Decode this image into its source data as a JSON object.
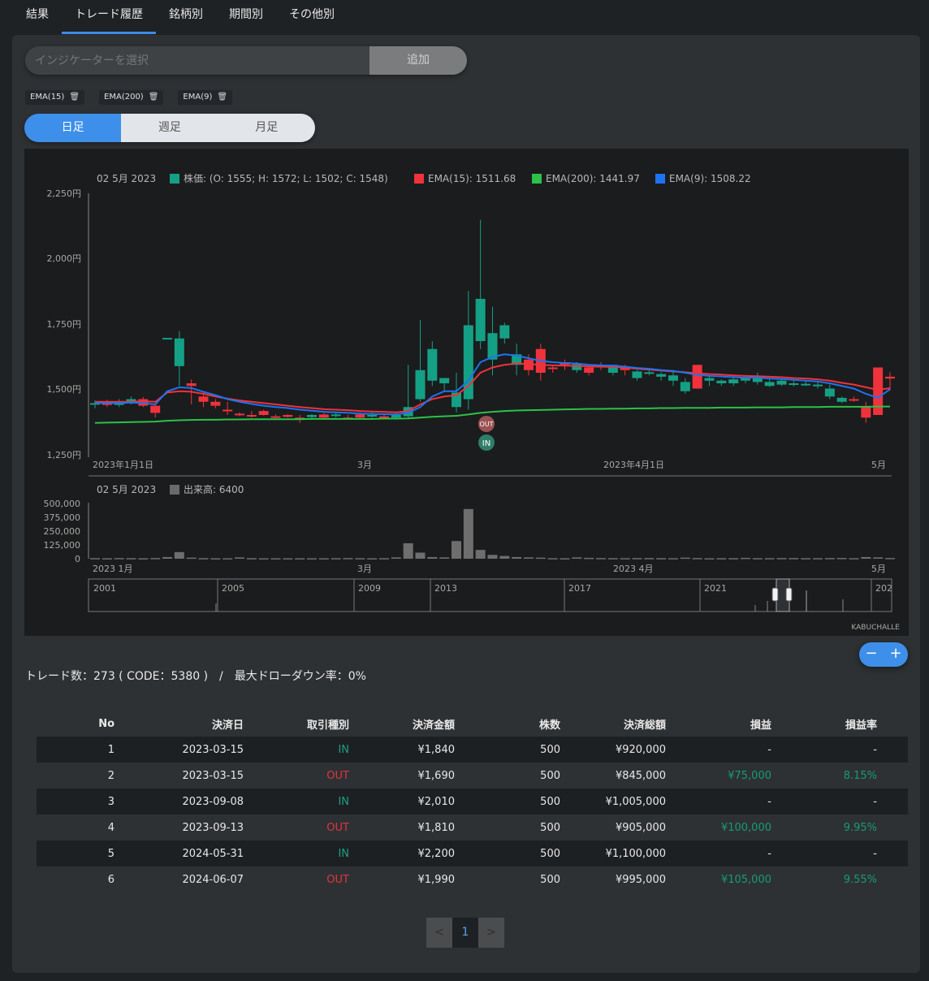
{
  "tabs": [
    {
      "label": "結果"
    },
    {
      "label": "トレード履歴"
    },
    {
      "label": "銘柄別"
    },
    {
      "label": "期間別"
    },
    {
      "label": "その他別"
    }
  ],
  "indicator": {
    "placeholder": "インジケーターを選択",
    "add_label": "追加"
  },
  "chips": [
    {
      "label": "EMA(15)"
    },
    {
      "label": "EMA(200)"
    },
    {
      "label": "EMA(9)"
    }
  ],
  "period_buttons": [
    {
      "label": "日足"
    },
    {
      "label": "週足"
    },
    {
      "label": "月足"
    }
  ],
  "colors": {
    "accent": "#3d8fea",
    "up": "#14a085",
    "down": "#f0323c",
    "ema15": "#f0323c",
    "ema200": "#2bc24a",
    "ema9": "#1c74f2"
  },
  "chart_data": {
    "type": "candlestick",
    "legend_date": "02 5月 2023",
    "legend_price": "株価: (O: 1555; H: 1572; L: 1502; C: 1548)",
    "legend_ema15": "EMA(15): 1511.68",
    "legend_ema200": "EMA(200): 1441.97",
    "legend_ema9": "EMA(9): 1508.22",
    "y_ticks": [
      "2,250円",
      "2,000円",
      "1,750円",
      "1,500円",
      "1,250円"
    ],
    "y_range": [
      1250,
      2250
    ],
    "x_ticks": [
      "2023年1月1日",
      "3月",
      "2023年4月1日",
      "5月"
    ],
    "ohlc": [
      [
        1450,
        1465,
        1435,
        1455
      ],
      [
        1455,
        1468,
        1440,
        1448
      ],
      [
        1448,
        1470,
        1440,
        1462
      ],
      [
        1462,
        1480,
        1450,
        1470
      ],
      [
        1470,
        1478,
        1440,
        1445
      ],
      [
        1445,
        1455,
        1400,
        1418
      ],
      [
        1700,
        1702,
        1700,
        1702
      ],
      [
        1595,
        1728,
        1520,
        1700
      ],
      [
        1530,
        1545,
        1450,
        1520
      ],
      [
        1480,
        1495,
        1440,
        1460
      ],
      [
        1460,
        1470,
        1435,
        1445
      ],
      [
        1430,
        1460,
        1410,
        1425
      ],
      [
        1415,
        1420,
        1405,
        1410
      ],
      [
        1410,
        1425,
        1400,
        1408
      ],
      [
        1425,
        1430,
        1408,
        1410
      ],
      [
        1405,
        1412,
        1398,
        1400
      ],
      [
        1410,
        1414,
        1400,
        1403
      ],
      [
        1400,
        1410,
        1380,
        1398
      ],
      [
        1402,
        1414,
        1398,
        1410
      ],
      [
        1412,
        1418,
        1395,
        1400
      ],
      [
        1408,
        1418,
        1400,
        1412
      ],
      [
        1400,
        1410,
        1392,
        1396
      ],
      [
        1412,
        1420,
        1398,
        1400
      ],
      [
        1410,
        1422,
        1400,
        1410
      ],
      [
        1405,
        1412,
        1398,
        1400
      ],
      [
        1400,
        1418,
        1395,
        1410
      ],
      [
        1405,
        1600,
        1395,
        1440
      ],
      [
        1470,
        1770,
        1460,
        1580
      ],
      [
        1540,
        1690,
        1520,
        1660
      ],
      [
        1530,
        1545,
        1500,
        1550
      ],
      [
        1440,
        1570,
        1420,
        1495
      ],
      [
        1470,
        1880,
        1430,
        1750
      ],
      [
        1690,
        2150,
        1660,
        1850
      ],
      [
        1620,
        1820,
        1560,
        1720
      ],
      [
        1700,
        1760,
        1680,
        1750
      ],
      [
        1600,
        1680,
        1560,
        1640
      ],
      [
        1620,
        1640,
        1560,
        1580
      ],
      [
        1660,
        1680,
        1540,
        1570
      ],
      [
        1590,
        1600,
        1570,
        1588
      ],
      [
        1610,
        1620,
        1580,
        1600
      ],
      [
        1580,
        1610,
        1570,
        1602
      ],
      [
        1590,
        1600,
        1560,
        1570
      ],
      [
        1600,
        1610,
        1580,
        1590
      ],
      [
        1570,
        1600,
        1560,
        1600
      ],
      [
        1590,
        1600,
        1560,
        1580
      ],
      [
        1550,
        1580,
        1540,
        1575
      ],
      [
        1570,
        1582,
        1560,
        1572
      ],
      [
        1555,
        1572,
        1540,
        1565
      ],
      [
        1540,
        1580,
        1520,
        1560
      ],
      [
        1500,
        1550,
        1490,
        1535
      ],
      [
        1600,
        1600,
        1510,
        1510
      ],
      [
        1540,
        1560,
        1520,
        1550
      ],
      [
        1530,
        1545,
        1520,
        1540
      ],
      [
        1530,
        1560,
        1520,
        1545
      ],
      [
        1540,
        1555,
        1530,
        1550
      ],
      [
        1535,
        1570,
        1525,
        1555
      ],
      [
        1520,
        1550,
        1515,
        1535
      ],
      [
        1525,
        1545,
        1520,
        1540
      ],
      [
        1525,
        1540,
        1518,
        1530
      ],
      [
        1525,
        1540,
        1520,
        1528
      ],
      [
        1520,
        1535,
        1510,
        1525
      ],
      [
        1480,
        1525,
        1470,
        1510
      ],
      [
        1460,
        1480,
        1455,
        1475
      ],
      [
        1470,
        1480,
        1460,
        1465
      ],
      [
        1440,
        1460,
        1380,
        1400
      ],
      [
        1590,
        1590,
        1410,
        1410
      ],
      [
        1555,
        1572,
        1502,
        1548
      ]
    ],
    "ema15": [
      1460,
      1460,
      1460,
      1460,
      1462,
      1460,
      1495,
      1500,
      1498,
      1490,
      1480,
      1472,
      1465,
      1460,
      1455,
      1450,
      1445,
      1440,
      1436,
      1432,
      1430,
      1428,
      1425,
      1423,
      1422,
      1420,
      1425,
      1450,
      1470,
      1480,
      1485,
      1520,
      1570,
      1590,
      1600,
      1605,
      1603,
      1600,
      1598,
      1597,
      1596,
      1594,
      1593,
      1592,
      1590,
      1585,
      1582,
      1578,
      1575,
      1572,
      1568,
      1565,
      1563,
      1560,
      1558,
      1557,
      1555,
      1553,
      1550,
      1548,
      1545,
      1540,
      1532,
      1525,
      1515,
      1505,
      1512
    ],
    "ema200": [
      1380,
      1381,
      1382,
      1383,
      1384,
      1385,
      1388,
      1390,
      1391,
      1392,
      1392,
      1393,
      1393,
      1394,
      1394,
      1394,
      1394,
      1394,
      1395,
      1395,
      1395,
      1395,
      1395,
      1395,
      1396,
      1396,
      1397,
      1400,
      1403,
      1405,
      1407,
      1412,
      1418,
      1422,
      1425,
      1427,
      1428,
      1429,
      1430,
      1431,
      1432,
      1433,
      1433,
      1434,
      1434,
      1435,
      1435,
      1436,
      1436,
      1437,
      1437,
      1437,
      1438,
      1438,
      1438,
      1439,
      1439,
      1439,
      1440,
      1440,
      1440,
      1441,
      1441,
      1441,
      1441,
      1442,
      1442
    ],
    "ema9": [
      1455,
      1455,
      1455,
      1457,
      1455,
      1450,
      1500,
      1515,
      1512,
      1498,
      1485,
      1470,
      1460,
      1452,
      1445,
      1440,
      1436,
      1430,
      1426,
      1422,
      1420,
      1418,
      1415,
      1414,
      1413,
      1412,
      1418,
      1440,
      1480,
      1500,
      1500,
      1540,
      1610,
      1630,
      1640,
      1635,
      1625,
      1615,
      1610,
      1607,
      1605,
      1600,
      1598,
      1597,
      1593,
      1588,
      1585,
      1580,
      1577,
      1570,
      1562,
      1558,
      1556,
      1553,
      1551,
      1552,
      1548,
      1546,
      1543,
      1540,
      1537,
      1530,
      1520,
      1510,
      1490,
      1475,
      1508
    ],
    "trade_markers": [
      {
        "label": "OUT"
      },
      {
        "label": "IN"
      }
    ],
    "volume_legend": "出来高: 6400",
    "volume_y_ticks": [
      "500,000",
      "375,000",
      "250,000",
      "125,000",
      "0"
    ],
    "volume_range": [
      0,
      500000
    ],
    "volume_x_ticks": [
      "2023 1月",
      "3月",
      "2023 4月",
      "5月"
    ],
    "volume": [
      5000,
      4000,
      6000,
      5000,
      4000,
      6000,
      15000,
      60000,
      10000,
      5000,
      4000,
      4000,
      12000,
      5000,
      4000,
      4000,
      4000,
      4000,
      4000,
      4000,
      5000,
      6000,
      5000,
      4000,
      5000,
      12000,
      140000,
      55000,
      15000,
      12000,
      160000,
      450000,
      80000,
      35000,
      25000,
      15000,
      12000,
      10000,
      5000,
      4000,
      12000,
      8000,
      6000,
      5000,
      5000,
      6000,
      6000,
      5000,
      5000,
      10000,
      6000,
      4000,
      5000,
      5000,
      8000,
      5000,
      5000,
      6000,
      6000,
      5000,
      5000,
      6000,
      7000,
      5000,
      15000,
      12000,
      6400
    ],
    "navigator_labels": [
      "2001",
      "2005",
      "2009",
      "2013",
      "2017",
      "2021",
      "202"
    ],
    "brand": "KABUCHALLE"
  },
  "summary": "トレード数：273 ( CODE：5380 )　/　最大ドローダウン率：0%",
  "table": {
    "headers": [
      "No",
      "決済日",
      "取引種別",
      "決済金額",
      "株数",
      "決済総額",
      "損益",
      "損益率"
    ],
    "rows": [
      [
        "1",
        "2023-03-15",
        "IN",
        "¥1,840",
        "500",
        "¥920,000",
        "-",
        "-"
      ],
      [
        "2",
        "2023-03-15",
        "OUT",
        "¥1,690",
        "500",
        "¥845,000",
        "¥75,000",
        "8.15%"
      ],
      [
        "3",
        "2023-09-08",
        "IN",
        "¥2,010",
        "500",
        "¥1,005,000",
        "-",
        "-"
      ],
      [
        "4",
        "2023-09-13",
        "OUT",
        "¥1,810",
        "500",
        "¥905,000",
        "¥100,000",
        "9.95%"
      ],
      [
        "5",
        "2024-05-31",
        "IN",
        "¥2,200",
        "500",
        "¥1,100,000",
        "-",
        "-"
      ],
      [
        "6",
        "2024-06-07",
        "OUT",
        "¥1,990",
        "500",
        "¥995,000",
        "¥105,000",
        "9.55%"
      ]
    ]
  },
  "pager": {
    "prev": "<",
    "current": "1",
    "next": ">"
  },
  "zoom": {
    "minus": "−",
    "plus": "+"
  }
}
